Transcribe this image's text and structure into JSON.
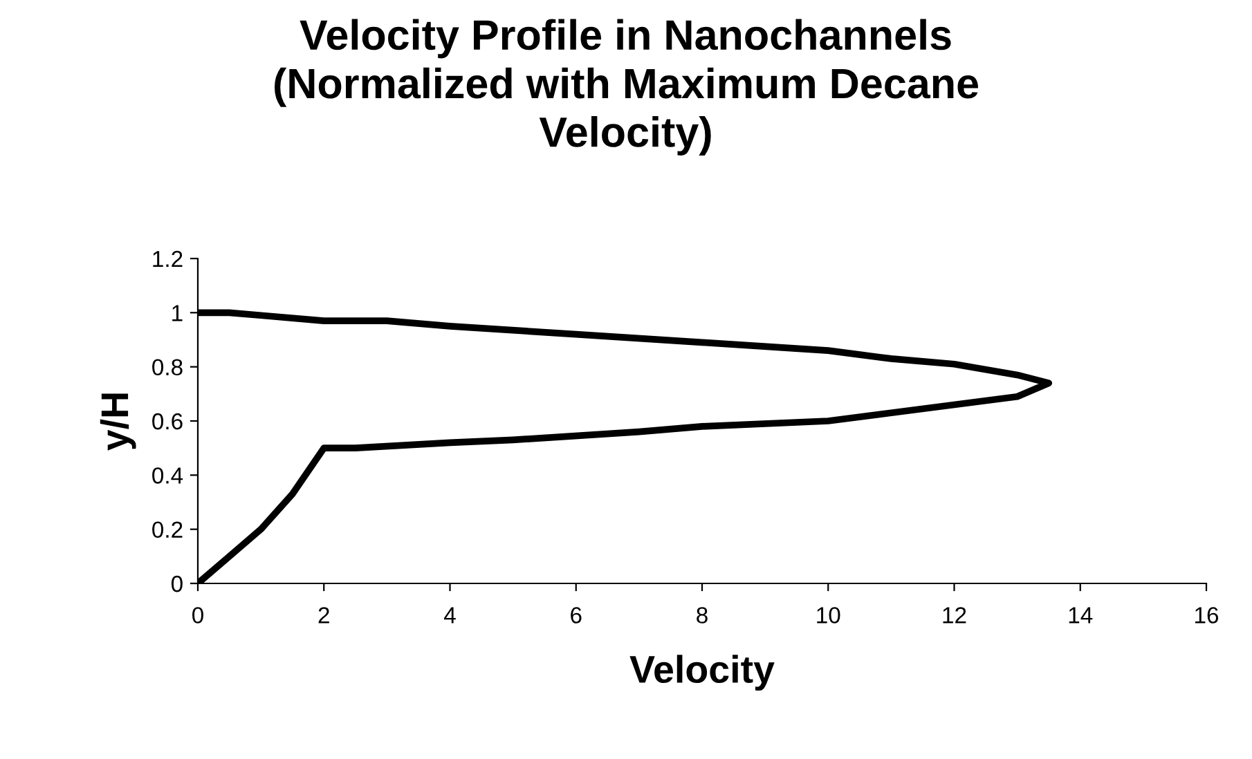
{
  "chart_data": {
    "type": "line",
    "title": "Velocity Profile in Nanochannels\n(Normalized with Maximum Decane\nVelocity)",
    "xlabel": "Velocity",
    "ylabel": "y/H",
    "series": [
      {
        "color": "#000000",
        "x": [
          0,
          0.5,
          1,
          1.5,
          2,
          2.5,
          4,
          5,
          7,
          8,
          10,
          11,
          12,
          13,
          13.5,
          13,
          12,
          11,
          10,
          8,
          6,
          4,
          3,
          2,
          1,
          0.5,
          0
        ],
        "values": [
          0,
          0.1,
          0.2,
          0.33,
          0.5,
          0.5,
          0.52,
          0.53,
          0.56,
          0.58,
          0.6,
          0.63,
          0.66,
          0.69,
          0.74,
          0.77,
          0.81,
          0.83,
          0.86,
          0.89,
          0.92,
          0.95,
          0.97,
          0.97,
          0.99,
          1.0,
          1.0
        ]
      }
    ],
    "xlim": [
      0,
      16
    ],
    "xticks": [
      0,
      2,
      4,
      6,
      8,
      10,
      12,
      14,
      16
    ],
    "ylim": [
      0,
      1.2
    ],
    "yticks": [
      0,
      0.2,
      0.4,
      0.6,
      0.8,
      1,
      1.2
    ],
    "grid": false,
    "legend": false,
    "marker": "none",
    "line_style": "solid"
  }
}
